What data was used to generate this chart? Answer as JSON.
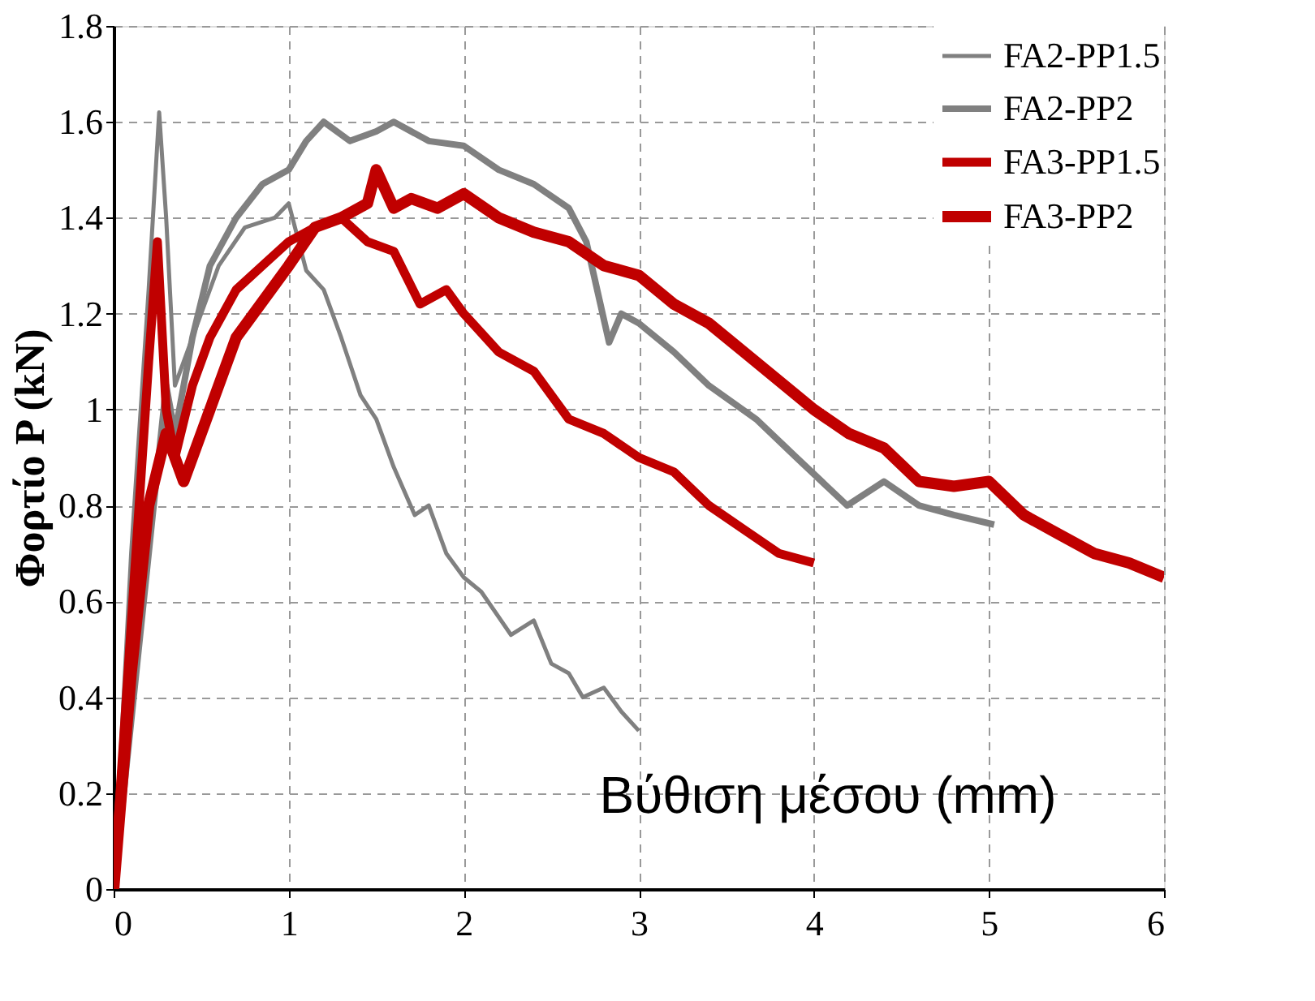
{
  "chart_data": {
    "type": "line",
    "xlabel": "Βύθιση μέσου (mm)",
    "ylabel": "Φορτίο P (kN)",
    "xlim": [
      0,
      6
    ],
    "ylim": [
      0,
      1.8
    ],
    "xticks": [
      0,
      1,
      2,
      3,
      4,
      5,
      6
    ],
    "yticks": [
      0,
      0.2,
      0.4,
      0.6,
      0.8,
      1,
      1.2,
      1.4,
      1.6,
      1.8
    ],
    "grid": true,
    "legend": "top right",
    "marker": "none",
    "line_style": "solid",
    "series": [
      {
        "name": "FA2-PP1.5",
        "color": "#808080",
        "x": [
          0,
          0.1,
          0.2,
          0.26,
          0.3,
          0.35,
          0.4,
          0.5,
          0.6,
          0.75,
          0.92,
          1.0,
          1.1,
          1.2,
          1.3,
          1.41,
          1.5,
          1.6,
          1.72,
          1.8,
          1.9,
          2.0,
          2.1,
          2.27,
          2.4,
          2.5,
          2.6,
          2.68,
          2.8,
          2.9,
          3.0
        ],
        "values": [
          0,
          0.7,
          1.25,
          1.62,
          1.4,
          1.05,
          1.1,
          1.2,
          1.3,
          1.38,
          1.4,
          1.43,
          1.29,
          1.25,
          1.15,
          1.03,
          0.98,
          0.88,
          0.78,
          0.8,
          0.7,
          0.65,
          0.62,
          0.53,
          0.56,
          0.47,
          0.45,
          0.4,
          0.42,
          0.37,
          0.33
        ]
      },
      {
        "name": "FA2-PP2",
        "color": "#808080",
        "x": [
          0,
          0.3,
          0.35,
          0.45,
          0.55,
          0.7,
          0.85,
          1.0,
          1.1,
          1.2,
          1.35,
          1.5,
          1.6,
          1.8,
          2.0,
          2.2,
          2.4,
          2.6,
          2.7,
          2.83,
          2.9,
          3.0,
          3.2,
          3.4,
          3.67,
          3.9,
          4.19,
          4.4,
          4.6,
          4.8,
          5.03
        ],
        "values": [
          0,
          1.05,
          0.95,
          1.15,
          1.3,
          1.4,
          1.47,
          1.5,
          1.56,
          1.6,
          1.56,
          1.58,
          1.6,
          1.56,
          1.55,
          1.5,
          1.47,
          1.42,
          1.35,
          1.14,
          1.2,
          1.18,
          1.12,
          1.05,
          0.98,
          0.9,
          0.8,
          0.85,
          0.8,
          0.78,
          0.76
        ]
      },
      {
        "name": "FA3-PP1.5",
        "color": "#c00000",
        "x": [
          0,
          0.1,
          0.2,
          0.25,
          0.3,
          0.35,
          0.45,
          0.55,
          0.7,
          0.85,
          1.0,
          1.15,
          1.3,
          1.45,
          1.6,
          1.75,
          1.9,
          2.0,
          2.2,
          2.4,
          2.6,
          2.8,
          3.0,
          3.2,
          3.4,
          3.6,
          3.8,
          4.0
        ],
        "values": [
          0,
          0.55,
          1.1,
          1.35,
          1.0,
          0.9,
          1.05,
          1.15,
          1.25,
          1.3,
          1.35,
          1.38,
          1.4,
          1.35,
          1.33,
          1.22,
          1.25,
          1.2,
          1.12,
          1.08,
          0.98,
          0.95,
          0.9,
          0.87,
          0.8,
          0.75,
          0.7,
          0.68
        ]
      },
      {
        "name": "FA3-PP2",
        "color": "#c00000",
        "x": [
          0,
          0.1,
          0.2,
          0.3,
          0.4,
          0.55,
          0.7,
          0.8,
          1.0,
          1.15,
          1.3,
          1.45,
          1.5,
          1.6,
          1.7,
          1.85,
          2.0,
          2.2,
          2.4,
          2.6,
          2.8,
          3.0,
          3.2,
          3.4,
          3.6,
          3.8,
          4.0,
          4.2,
          4.4,
          4.6,
          4.8,
          5.0,
          5.2,
          5.4,
          5.6,
          5.8,
          6.0
        ],
        "values": [
          0,
          0.45,
          0.8,
          0.95,
          0.85,
          1.0,
          1.15,
          1.2,
          1.3,
          1.38,
          1.4,
          1.43,
          1.5,
          1.42,
          1.44,
          1.42,
          1.45,
          1.4,
          1.37,
          1.35,
          1.3,
          1.28,
          1.22,
          1.18,
          1.12,
          1.06,
          1.0,
          0.95,
          0.92,
          0.85,
          0.84,
          0.85,
          0.78,
          0.74,
          0.7,
          0.68,
          0.65
        ]
      }
    ]
  }
}
